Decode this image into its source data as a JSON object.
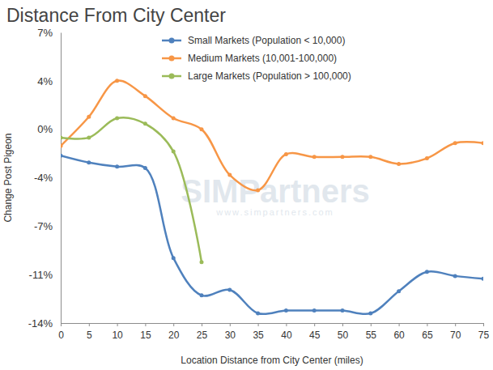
{
  "chart_data": {
    "type": "line",
    "title": "Distance From City Center",
    "x_label": "Location Distance from City Center (miles)",
    "y_label": "Change Post Pigeon",
    "x": [
      0,
      5,
      10,
      15,
      20,
      25,
      30,
      35,
      40,
      45,
      50,
      55,
      60,
      65,
      70,
      75
    ],
    "xlim": [
      0,
      75
    ],
    "xticks": [
      0,
      5,
      10,
      15,
      20,
      25,
      30,
      35,
      40,
      45,
      50,
      55,
      60,
      65,
      70,
      75
    ],
    "ylim": [
      -14,
      7
    ],
    "yticks": [
      {
        "value": -14,
        "label": "-14%"
      },
      {
        "value": -10.5,
        "label": "-11%"
      },
      {
        "value": -7,
        "label": "-7%"
      },
      {
        "value": -3.5,
        "label": "-4%"
      },
      {
        "value": 0,
        "label": "0%"
      },
      {
        "value": 3.5,
        "label": "4%"
      },
      {
        "value": 7,
        "label": "7%"
      }
    ],
    "grid": false,
    "legend": "top",
    "marker": "circle",
    "annotations": [
      "SIMPartners",
      "www.simpartners.com"
    ],
    "series": [
      {
        "name": "Small Markets (Population < 10,000)",
        "color": "#4f81bd",
        "values": [
          -1.9,
          -2.4,
          -2.7,
          -2.8,
          -9.3,
          -12.0,
          -11.6,
          -13.3,
          -13.1,
          -13.1,
          -13.1,
          -13.3,
          -11.7,
          -10.3,
          -10.6,
          -10.8
        ]
      },
      {
        "name": "Medium Markets (10,001-100,000)",
        "color": "#f79646",
        "values": [
          -1.2,
          0.9,
          3.5,
          2.4,
          0.8,
          0,
          -3.3,
          -4.4,
          -1.8,
          -2.0,
          -2.0,
          -2.0,
          -2.5,
          -2.1,
          -1.0,
          -1.0
        ]
      },
      {
        "name": "Large Markets (Population > 100,000)",
        "color": "#9bbb59",
        "values": [
          -0.6,
          -0.6,
          0.8,
          0.4,
          -1.6,
          -9.6,
          null,
          null,
          null,
          null,
          null,
          null,
          null,
          null,
          null,
          null
        ]
      }
    ]
  }
}
